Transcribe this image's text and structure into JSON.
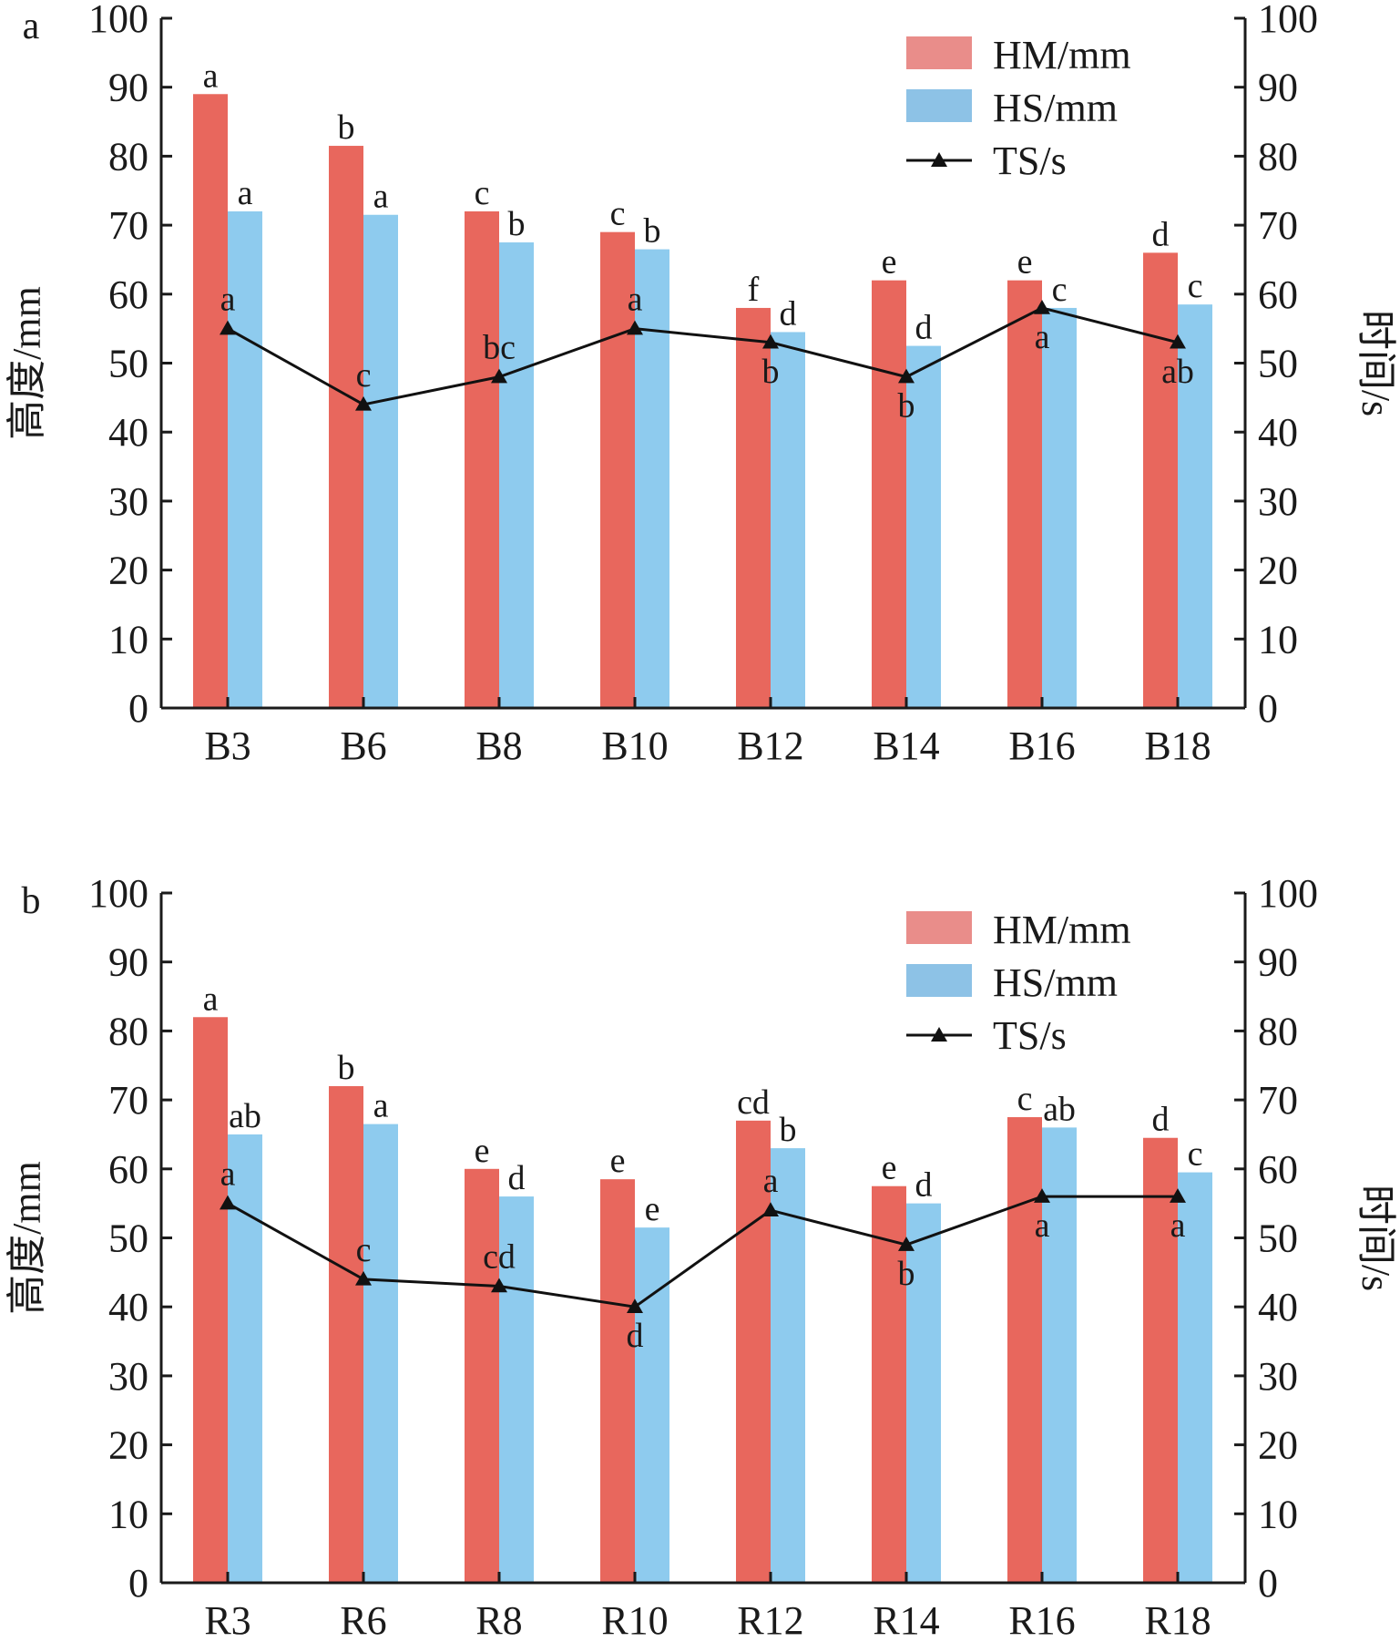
{
  "colors": {
    "hm": "#e8675d",
    "hs": "#8ecbee",
    "hm_legend": "#e98d8a",
    "hs_legend": "#8dc2e6",
    "ts": "#111111",
    "axis": "#1a1a1a"
  },
  "legend": {
    "hm": "HM/mm",
    "hs": "HS/mm",
    "ts": "TS/s"
  },
  "chart_data": [
    {
      "type": "bar",
      "panel_label": "a",
      "ylabel": "高度/mm",
      "y2label": "时间/s",
      "ylim": [
        0,
        100
      ],
      "y2lim": [
        0,
        100
      ],
      "yticks": [
        "0",
        "10",
        "20",
        "30",
        "40",
        "50",
        "60",
        "70",
        "80",
        "90",
        "100"
      ],
      "categories": [
        "B3",
        "B6",
        "B8",
        "B10",
        "B12",
        "B14",
        "B16",
        "B18"
      ],
      "legend_position": "top-right",
      "series": [
        {
          "name": "HM/mm",
          "kind": "bar",
          "axis": "left",
          "values": [
            89,
            81.5,
            72,
            69,
            58,
            62,
            62,
            66
          ],
          "letters": [
            "a",
            "b",
            "c",
            "c",
            "f",
            "e",
            "e",
            "d"
          ]
        },
        {
          "name": "HS/mm",
          "kind": "bar",
          "axis": "left",
          "values": [
            72,
            71.5,
            67.5,
            66.5,
            54.5,
            52.5,
            58,
            58.5
          ],
          "letters": [
            "a",
            "a",
            "b",
            "b",
            "d",
            "d",
            "c",
            "c"
          ]
        },
        {
          "name": "TS/s",
          "kind": "line",
          "axis": "right",
          "values": [
            55,
            44,
            48,
            55,
            53,
            48,
            58,
            53
          ],
          "letters": [
            "a",
            "c",
            "bc",
            "a",
            "b",
            "b",
            "a",
            "ab"
          ],
          "letter_pos": [
            "above",
            "above",
            "above",
            "above",
            "below",
            "below",
            "below",
            "below"
          ]
        }
      ]
    },
    {
      "type": "bar",
      "panel_label": "b",
      "ylabel": "高度/mm",
      "y2label": "时间/s",
      "ylim": [
        0,
        100
      ],
      "y2lim": [
        0,
        100
      ],
      "yticks": [
        "0",
        "10",
        "20",
        "30",
        "40",
        "50",
        "60",
        "70",
        "80",
        "90",
        "100"
      ],
      "categories": [
        "R3",
        "R6",
        "R8",
        "R10",
        "R12",
        "R14",
        "R16",
        "R18"
      ],
      "legend_position": "top-right",
      "series": [
        {
          "name": "HM/mm",
          "kind": "bar",
          "axis": "left",
          "values": [
            82,
            72,
            60,
            58.5,
            67,
            57.5,
            67.5,
            64.5
          ],
          "letters": [
            "a",
            "b",
            "e",
            "e",
            "cd",
            "e",
            "c",
            "d"
          ]
        },
        {
          "name": "HS/mm",
          "kind": "bar",
          "axis": "left",
          "values": [
            65,
            66.5,
            56,
            51.5,
            63,
            55,
            66,
            59.5
          ],
          "letters": [
            "ab",
            "a",
            "d",
            "e",
            "b",
            "d",
            "ab",
            "c"
          ]
        },
        {
          "name": "TS/s",
          "kind": "line",
          "axis": "right",
          "values": [
            55,
            44,
            43,
            40,
            54,
            49,
            56,
            56
          ],
          "letters": [
            "a",
            "c",
            "cd",
            "d",
            "a",
            "b",
            "a",
            "a"
          ],
          "letter_pos": [
            "above",
            "above",
            "above",
            "below",
            "above",
            "below",
            "below",
            "below"
          ]
        }
      ]
    }
  ]
}
